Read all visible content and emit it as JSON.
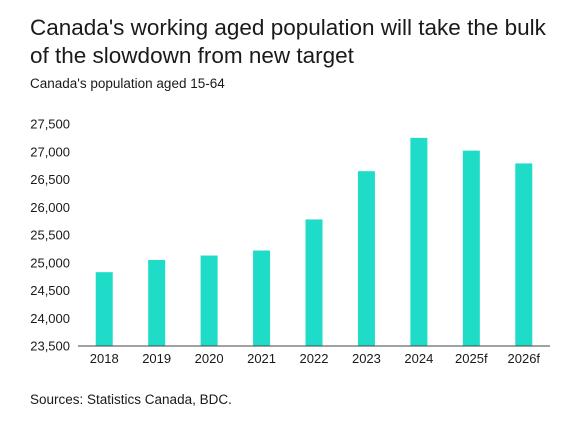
{
  "title": "Canada's working aged population will take the bulk of the slowdown from new target",
  "subtitle": "Canada's population aged 15-64",
  "source": "Sources: Statistics Canada, BDC.",
  "colors": {
    "bar": "#1fdcc8",
    "axis": "#444444",
    "text": "#1a1a1a"
  },
  "chart_data": {
    "type": "bar",
    "title": "Canada's working aged population will take the bulk of the slowdown from new target",
    "subtitle": "Canada's population aged 15-64",
    "xlabel": "",
    "ylabel": "",
    "categories": [
      "2018",
      "2019",
      "2020",
      "2021",
      "2022",
      "2023",
      "2024",
      "2025f",
      "2026f"
    ],
    "values": [
      24830,
      25050,
      25130,
      25220,
      25780,
      26650,
      27250,
      27020,
      26790
    ],
    "ylim": [
      23500,
      27500
    ],
    "yticks": [
      23500,
      24000,
      24500,
      25000,
      25500,
      26000,
      26500,
      27000,
      27500
    ],
    "ytick_labels": [
      "23,500",
      "24,000",
      "24,500",
      "25,000",
      "25,500",
      "26,000",
      "26,500",
      "27,000",
      "27,500"
    ],
    "grid": false,
    "legend": "none"
  }
}
